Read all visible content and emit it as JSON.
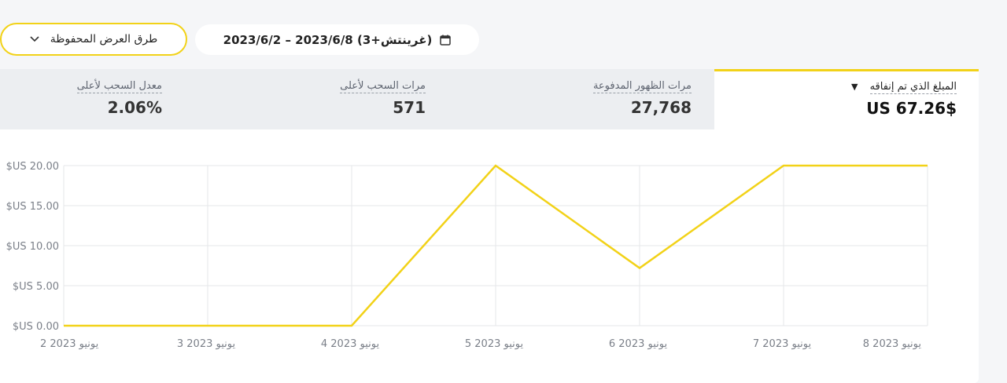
{
  "toolbar": {
    "saved_views_label": "طرق العرض المحفوظة",
    "date_range_label": "2023/6/2 – 2023/6/8 (غرينتش+3)"
  },
  "metrics": [
    {
      "label": "المبلغ الذي تم إنفاقه",
      "value": "$US 67.26",
      "active": true
    },
    {
      "label": "مرات الظهور المدفوعة",
      "value": "27,768",
      "active": false
    },
    {
      "label": "مرات السحب لأعلى",
      "value": "571",
      "active": false
    },
    {
      "label": "معدل السحب لأعلى",
      "value": "2.06%",
      "active": false
    }
  ],
  "chart_data": {
    "type": "line",
    "categories": [
      "2 يونيو 2023",
      "3 يونيو 2023",
      "4 يونيو 2023",
      "5 يونيو 2023",
      "6 يونيو 2023",
      "7 يونيو 2023",
      "8 يونيو 2023"
    ],
    "values": [
      0,
      0,
      0,
      20,
      7.2,
      20,
      20
    ],
    "ylim": [
      0,
      20
    ],
    "yticks": [
      0,
      5,
      10,
      15,
      20
    ],
    "ytick_labels": [
      "$US 0.00",
      "$US 5.00",
      "$US 10.00",
      "$US 15.00",
      "$US 20.00"
    ],
    "line_color": "#f2d218",
    "grid": true,
    "title": "",
    "xlabel": "",
    "ylabel": ""
  }
}
